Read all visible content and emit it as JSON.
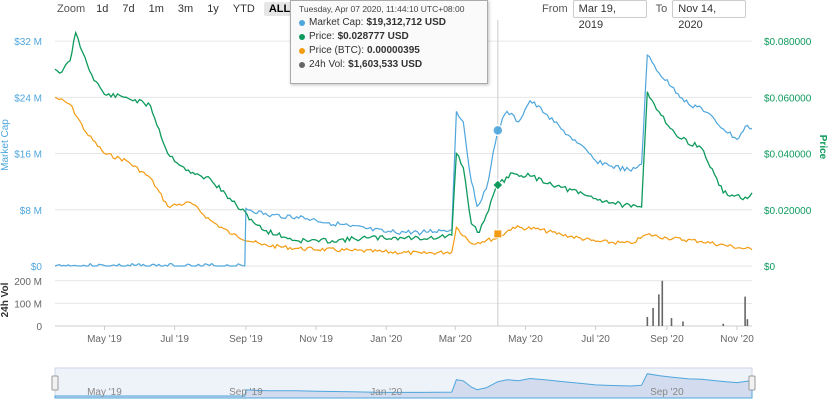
{
  "zoom": {
    "label": "Zoom",
    "buttons": [
      "1d",
      "7d",
      "1m",
      "3m",
      "1y",
      "YTD",
      "ALL"
    ],
    "active": "ALL"
  },
  "range": {
    "from_label": "From",
    "from_value": "Mar 19, 2019",
    "to_label": "To",
    "to_value": "Nov 14, 2020"
  },
  "tooltip": {
    "header": "Tuesday, Apr 07 2020, 11:44:10 UTC+08:00",
    "rows": [
      {
        "label": "Market Cap:",
        "value": "$19,312,712 USD",
        "color": "#4ea6dc"
      },
      {
        "label": "Price:",
        "value": "$0.028777 USD",
        "color": "#0e9a5c"
      },
      {
        "label": "Price (BTC):",
        "value": "0.00000395",
        "color": "#f39c12"
      },
      {
        "label": "24h Vol:",
        "value": "$1,603,533 USD",
        "color": "#666666"
      }
    ]
  },
  "colors": {
    "market_cap": "#4ea6dc",
    "price": "#0e9a5c",
    "price_btc": "#f39c12",
    "volume": "#666666",
    "navigator_fill": "#d3dcef"
  },
  "chart_data": {
    "type": "line",
    "x_ticks": [
      "May '19",
      "Jul '19",
      "Sep '19",
      "Nov '19",
      "Jan '20",
      "Mar '20",
      "May '20",
      "Jul '20",
      "Sep '20",
      "Nov '20"
    ],
    "navigator_ticks": [
      "May '19",
      "Sep '19",
      "Jan '20",
      "Sep '20"
    ],
    "left_axis": {
      "label": "Market Cap",
      "ticks": [
        "$0",
        "$8 M",
        "$16 M",
        "$24 M",
        "$32 M"
      ],
      "range": [
        0,
        35
      ]
    },
    "right_axis": {
      "label": "Price",
      "ticks": [
        "$0",
        "$0.020000",
        "$0.040000",
        "$0.060000",
        "$0.080000"
      ],
      "range": [
        0,
        0.0875
      ]
    },
    "volume_axis": {
      "label": "24h Vol",
      "ticks": [
        "0",
        "100 M",
        "200 M"
      ],
      "range": [
        0,
        230
      ]
    },
    "x_range": [
      "2019-03-19",
      "2020-11-14"
    ],
    "series": [
      {
        "name": "Market Cap",
        "unit": "USD millions",
        "points": [
          [
            "2019-03-19",
            0
          ],
          [
            "2019-08-31",
            0
          ],
          [
            "2019-09-01",
            8.2
          ],
          [
            "2019-09-20",
            7.2
          ],
          [
            "2019-10-15",
            7.0
          ],
          [
            "2019-11-01",
            6.5
          ],
          [
            "2019-12-01",
            5.6
          ],
          [
            "2020-01-01",
            4.8
          ],
          [
            "2020-02-01",
            4.8
          ],
          [
            "2020-02-27",
            5.2
          ],
          [
            "2020-03-02",
            22.0
          ],
          [
            "2020-03-08",
            20.5
          ],
          [
            "2020-03-15",
            12.0
          ],
          [
            "2020-03-20",
            8.5
          ],
          [
            "2020-03-28",
            11.0
          ],
          [
            "2020-04-07",
            19.3
          ],
          [
            "2020-04-15",
            22.0
          ],
          [
            "2020-04-25",
            20.5
          ],
          [
            "2020-05-05",
            23.5
          ],
          [
            "2020-05-20",
            21.5
          ],
          [
            "2020-06-01",
            19.5
          ],
          [
            "2020-06-15",
            17.5
          ],
          [
            "2020-07-01",
            15.0
          ],
          [
            "2020-07-15",
            14.2
          ],
          [
            "2020-08-01",
            13.5
          ],
          [
            "2020-08-10",
            14.5
          ],
          [
            "2020-08-15",
            30.0
          ],
          [
            "2020-08-25",
            27.5
          ],
          [
            "2020-09-05",
            25.5
          ],
          [
            "2020-09-20",
            23.0
          ],
          [
            "2020-10-01",
            22.5
          ],
          [
            "2020-10-20",
            19.5
          ],
          [
            "2020-11-01",
            18.0
          ],
          [
            "2020-11-10",
            20.0
          ],
          [
            "2020-11-14",
            19.5
          ]
        ]
      },
      {
        "name": "Price",
        "unit": "USD",
        "points": [
          [
            "2019-03-19",
            0.07
          ],
          [
            "2019-03-25",
            0.069
          ],
          [
            "2019-04-01",
            0.073
          ],
          [
            "2019-04-06",
            0.083
          ],
          [
            "2019-04-12",
            0.076
          ],
          [
            "2019-04-20",
            0.068
          ],
          [
            "2019-05-01",
            0.061
          ],
          [
            "2019-05-20",
            0.06
          ],
          [
            "2019-06-10",
            0.057
          ],
          [
            "2019-06-25",
            0.04
          ],
          [
            "2019-07-15",
            0.033
          ],
          [
            "2019-08-01",
            0.031
          ],
          [
            "2019-08-20",
            0.023
          ],
          [
            "2019-09-15",
            0.013
          ],
          [
            "2019-10-15",
            0.009
          ],
          [
            "2019-11-15",
            0.009
          ],
          [
            "2019-12-15",
            0.01
          ],
          [
            "2020-01-15",
            0.01
          ],
          [
            "2020-02-15",
            0.01
          ],
          [
            "2020-02-27",
            0.011
          ],
          [
            "2020-03-02",
            0.04
          ],
          [
            "2020-03-08",
            0.035
          ],
          [
            "2020-03-15",
            0.015
          ],
          [
            "2020-03-22",
            0.012
          ],
          [
            "2020-04-07",
            0.0288
          ],
          [
            "2020-04-20",
            0.033
          ],
          [
            "2020-05-05",
            0.032
          ],
          [
            "2020-06-01",
            0.028
          ],
          [
            "2020-07-01",
            0.024
          ],
          [
            "2020-08-01",
            0.021
          ],
          [
            "2020-08-10",
            0.021
          ],
          [
            "2020-08-15",
            0.062
          ],
          [
            "2020-08-25",
            0.055
          ],
          [
            "2020-09-10",
            0.046
          ],
          [
            "2020-10-01",
            0.042
          ],
          [
            "2020-10-20",
            0.026
          ],
          [
            "2020-11-10",
            0.024
          ],
          [
            "2020-11-14",
            0.026
          ]
        ]
      },
      {
        "name": "Price (BTC)",
        "unit": "BTC, drawn against the Market Cap axis (USD millions)",
        "points": [
          [
            "2019-03-19",
            24.0
          ],
          [
            "2019-04-01",
            23.0
          ],
          [
            "2019-04-15",
            19.0
          ],
          [
            "2019-05-01",
            16.0
          ],
          [
            "2019-05-20",
            15.0
          ],
          [
            "2019-06-10",
            12.5
          ],
          [
            "2019-06-25",
            8.5
          ],
          [
            "2019-07-15",
            9.0
          ],
          [
            "2019-08-01",
            6.5
          ],
          [
            "2019-08-20",
            4.5
          ],
          [
            "2019-09-15",
            3.0
          ],
          [
            "2019-10-15",
            2.5
          ],
          [
            "2019-12-01",
            2.2
          ],
          [
            "2020-02-01",
            1.8
          ],
          [
            "2020-02-27",
            2.0
          ],
          [
            "2020-03-02",
            5.5
          ],
          [
            "2020-03-15",
            3.2
          ],
          [
            "2020-04-07",
            4.0
          ],
          [
            "2020-04-20",
            5.5
          ],
          [
            "2020-05-10",
            5.3
          ],
          [
            "2020-06-01",
            4.5
          ],
          [
            "2020-07-01",
            3.5
          ],
          [
            "2020-08-01",
            3.2
          ],
          [
            "2020-08-15",
            4.5
          ],
          [
            "2020-09-01",
            4.0
          ],
          [
            "2020-10-01",
            3.5
          ],
          [
            "2020-11-14",
            2.3
          ]
        ]
      }
    ],
    "volume": [
      [
        "2020-08-15",
        40
      ],
      [
        "2020-08-20",
        80
      ],
      [
        "2020-08-25",
        140
      ],
      [
        "2020-08-28",
        200
      ],
      [
        "2020-09-05",
        35
      ],
      [
        "2020-09-15",
        20
      ],
      [
        "2020-10-20",
        10
      ],
      [
        "2020-11-08",
        130
      ],
      [
        "2020-11-10",
        30
      ]
    ]
  }
}
